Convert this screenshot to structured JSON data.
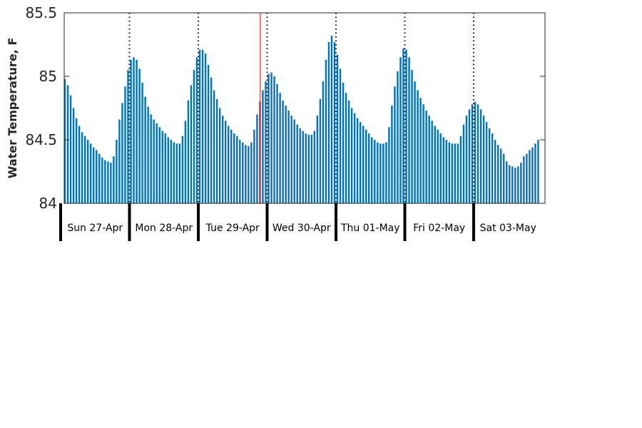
{
  "chart_data": {
    "type": "bar",
    "ylabel": "Water Temperature, F",
    "ylim": [
      84,
      85.5
    ],
    "yticks": [
      "84",
      "84.5",
      "85",
      "85.5"
    ],
    "x_start": "Sun 27-Apr",
    "x_step": "1 hour",
    "days": [
      "Sun 27-Apr",
      "Mon 28-Apr",
      "Tue 29-Apr",
      "Wed 30-Apr",
      "Thu 01-May",
      "Fri 02-May",
      "Sat 03-May"
    ],
    "marker_day_index": 2.9,
    "bar_color": "#0072bd",
    "marker_color": "#ff0000",
    "values": [
      84.99,
      84.98,
      84.93,
      84.85,
      84.75,
      84.67,
      84.61,
      84.56,
      84.53,
      84.5,
      84.47,
      84.44,
      84.42,
      84.39,
      84.36,
      84.34,
      84.33,
      84.32,
      84.37,
      84.5,
      84.66,
      84.79,
      84.92,
      85.05,
      85.13,
      85.15,
      85.13,
      85.06,
      84.95,
      84.84,
      84.76,
      84.7,
      84.66,
      84.63,
      84.6,
      84.57,
      84.55,
      84.52,
      84.5,
      84.48,
      84.47,
      84.47,
      84.53,
      84.65,
      84.81,
      84.93,
      85.05,
      85.15,
      85.21,
      85.21,
      85.18,
      85.09,
      84.99,
      84.89,
      84.82,
      84.75,
      84.69,
      84.65,
      84.61,
      84.58,
      84.55,
      84.53,
      84.5,
      84.48,
      84.46,
      84.45,
      84.48,
      84.58,
      84.7,
      84.8,
      84.89,
      84.96,
      85.02,
      85.03,
      85.0,
      84.94,
      84.87,
      84.81,
      84.77,
      84.73,
      84.69,
      84.66,
      84.62,
      84.59,
      84.57,
      84.55,
      84.54,
      84.54,
      84.57,
      84.69,
      84.82,
      84.96,
      85.13,
      85.27,
      85.32,
      85.27,
      85.17,
      85.06,
      84.95,
      84.87,
      84.81,
      84.75,
      84.71,
      84.67,
      84.64,
      84.61,
      84.58,
      84.55,
      84.52,
      84.5,
      84.48,
      84.47,
      84.47,
      84.48,
      84.6,
      84.77,
      84.92,
      85.04,
      85.15,
      85.22,
      85.21,
      85.15,
      85.05,
      84.96,
      84.89,
      84.83,
      84.78,
      84.73,
      84.69,
      84.65,
      84.61,
      84.58,
      84.55,
      84.52,
      84.5,
      84.48,
      84.47,
      84.47,
      84.47,
      84.53,
      84.62,
      84.69,
      84.74,
      84.78,
      84.8,
      84.78,
      84.74,
      84.69,
      84.64,
      84.59,
      84.55,
      84.5,
      84.46,
      84.43,
      84.39,
      84.33,
      84.3,
      84.29,
      84.28,
      84.29,
      84.32,
      84.37,
      84.39,
      84.42,
      84.44,
      84.47,
      84.5
    ]
  }
}
